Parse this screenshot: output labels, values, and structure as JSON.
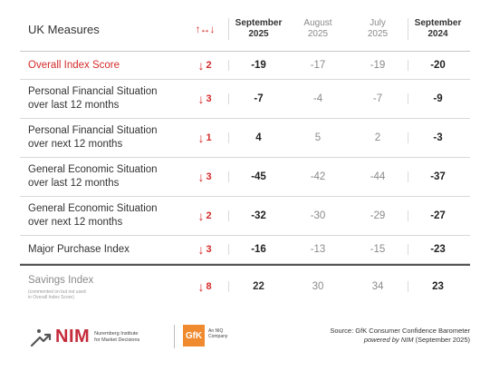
{
  "header": {
    "title": "UK Measures",
    "change_symbol": "↑↔↓",
    "columns": [
      {
        "line1": "September",
        "line2": "2025"
      },
      {
        "line1": "August",
        "line2": "2025"
      },
      {
        "line1": "July",
        "line2": "2025"
      },
      {
        "line1": "September",
        "line2": "2024"
      }
    ]
  },
  "rows": [
    {
      "label1": "Overall Index Score",
      "label2": "",
      "arrow": "↓",
      "change": "2",
      "v0": "-19",
      "v1": "-17",
      "v2": "-19",
      "v3": "-20"
    },
    {
      "label1": "Personal Financial Situation",
      "label2": "over last 12 months",
      "arrow": "↓",
      "change": "3",
      "v0": "-7",
      "v1": "-4",
      "v2": "-7",
      "v3": "-9"
    },
    {
      "label1": "Personal Financial Situation",
      "label2": "over next 12 months",
      "arrow": "↓",
      "change": "1",
      "v0": "4",
      "v1": "5",
      "v2": "2",
      "v3": "-3"
    },
    {
      "label1": "General Economic Situation",
      "label2": "over last 12 months",
      "arrow": "↓",
      "change": "3",
      "v0": "-45",
      "v1": "-42",
      "v2": "-44",
      "v3": "-37"
    },
    {
      "label1": "General Economic Situation",
      "label2": "over next 12 months",
      "arrow": "↓",
      "change": "2",
      "v0": "-32",
      "v1": "-30",
      "v2": "-29",
      "v3": "-27"
    },
    {
      "label1": "Major Purchase Index",
      "label2": "",
      "arrow": "↓",
      "change": "3",
      "v0": "-16",
      "v1": "-13",
      "v2": "-15",
      "v3": "-23"
    }
  ],
  "savings": {
    "label": "Savings Index",
    "note1": "(commented on but not used",
    "note2": "in Overall Index Score)",
    "arrow": "↓",
    "change": "8",
    "v0": "22",
    "v1": "30",
    "v2": "34",
    "v3": "23"
  },
  "footer": {
    "nim_text": "NIM",
    "nim_sub1": "Nuremberg Institute",
    "nim_sub2": "for Market Decisions",
    "gfk_text": "GfK",
    "gfk_sub1": "An NIQ",
    "gfk_sub2": "Company",
    "source1": "Source: GfK Consumer Confidence Barometer",
    "source2_italic": "powered by NIM",
    "source2_rest": " (September 2025)"
  },
  "colors": {
    "accent_red": "#d42b2b",
    "nim_red": "#c42b3b",
    "gfk_orange": "#f08a2e"
  },
  "icons": {
    "nim_logo": "arrow-person-icon",
    "change_arrow": "down-arrow-icon"
  }
}
